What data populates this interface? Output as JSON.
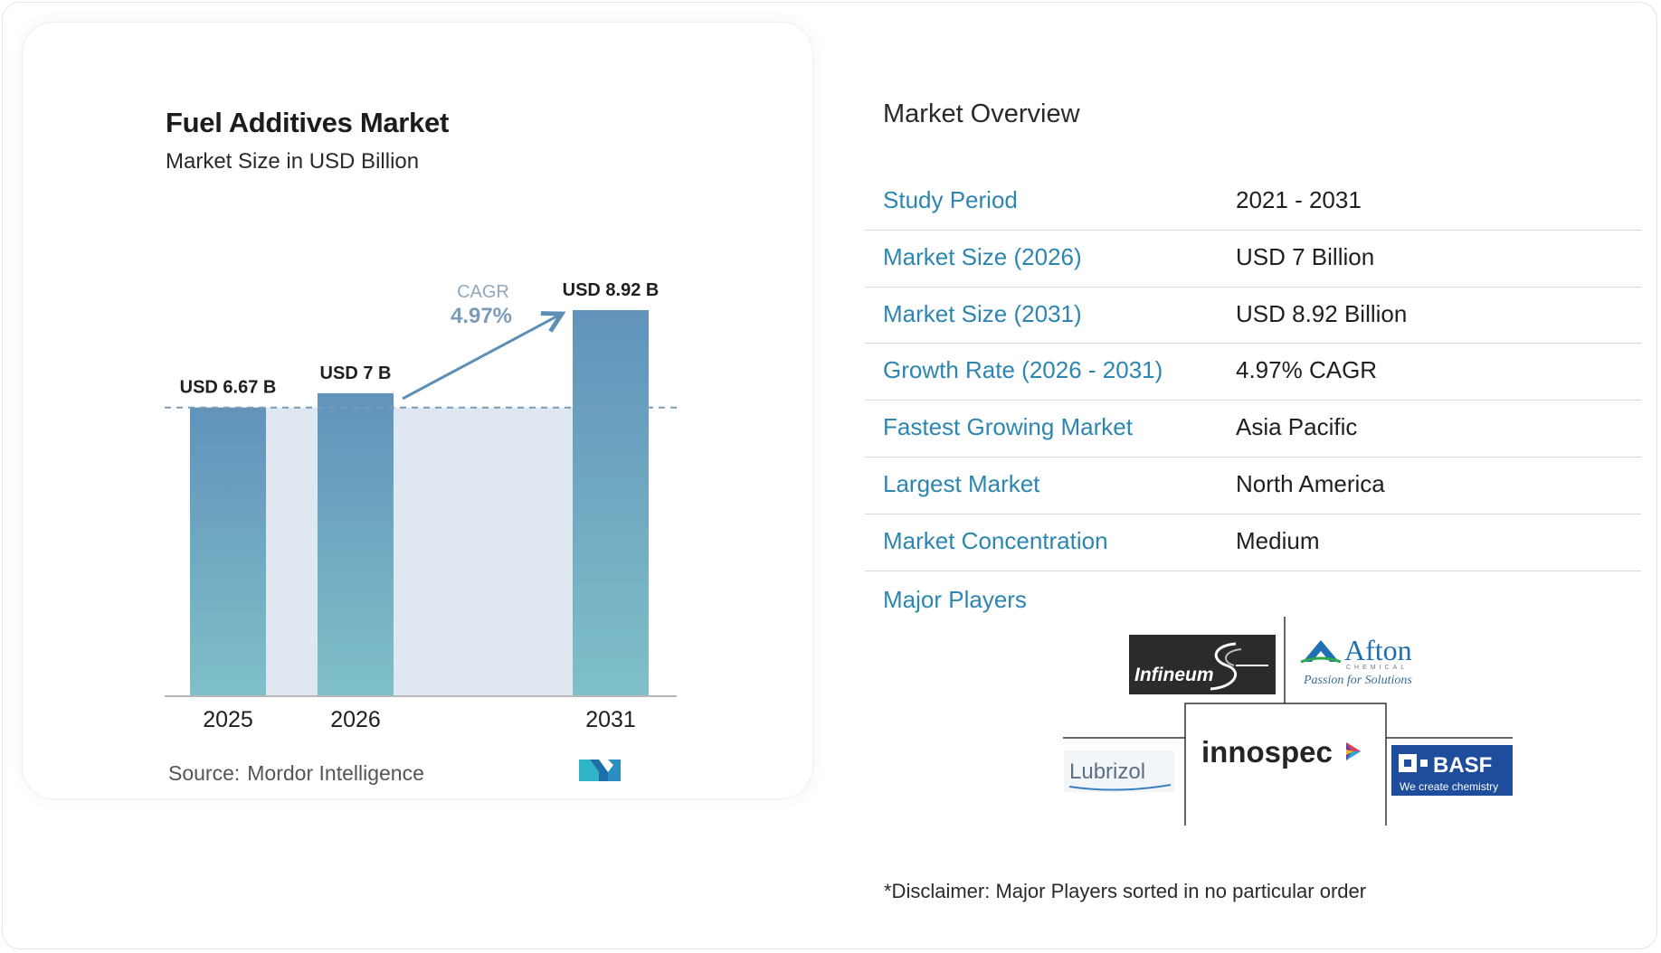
{
  "chart_data": {
    "type": "bar",
    "title": "Fuel Additives Market",
    "subtitle": "Market Size in USD Billion",
    "categories": [
      "2025",
      "2026",
      "2031"
    ],
    "values": [
      6.67,
      7.0,
      8.92
    ],
    "data_labels": [
      "USD 6.67 B",
      "USD 7 B",
      "USD 8.92 B"
    ],
    "ylim": [
      0,
      9.4
    ],
    "cagr_label": "CAGR",
    "cagr_value": "4.97%",
    "baseline_reference_value": 6.67,
    "grid": false,
    "colors": {
      "bar_top": "#6193bb",
      "bar_bottom": "#7fc0c8",
      "band": "#dfe8f1",
      "arrow": "#5d8fb6"
    }
  },
  "source": {
    "label": "Source:",
    "name": "Mordor Intelligence"
  },
  "overview": {
    "title": "Market Overview",
    "rows": [
      {
        "key": "Study Period",
        "value": "2021 - 2031"
      },
      {
        "key": "Market Size (2026)",
        "value": "USD 7 Billion"
      },
      {
        "key": "Market Size (2031)",
        "value": "USD 8.92 Billion"
      },
      {
        "key": "Growth Rate (2026 - 2031)",
        "value": "4.97% CAGR"
      },
      {
        "key": "Fastest Growing Market",
        "value": "Asia Pacific"
      },
      {
        "key": "Largest Market",
        "value": "North America"
      },
      {
        "key": "Market Concentration",
        "value": "Medium"
      }
    ]
  },
  "players": {
    "label": "Major Players",
    "logos": {
      "infineum": "Infineum",
      "afton": "Afton",
      "afton_sub": "CHEMICAL",
      "afton_tagline": "Passion for Solutions",
      "lubrizol": "Lubrizol",
      "innospec": "innospec",
      "basf": "BASF",
      "basf_tagline": "We create chemistry"
    }
  },
  "disclaimer": "*Disclaimer: Major Players sorted in no particular order"
}
